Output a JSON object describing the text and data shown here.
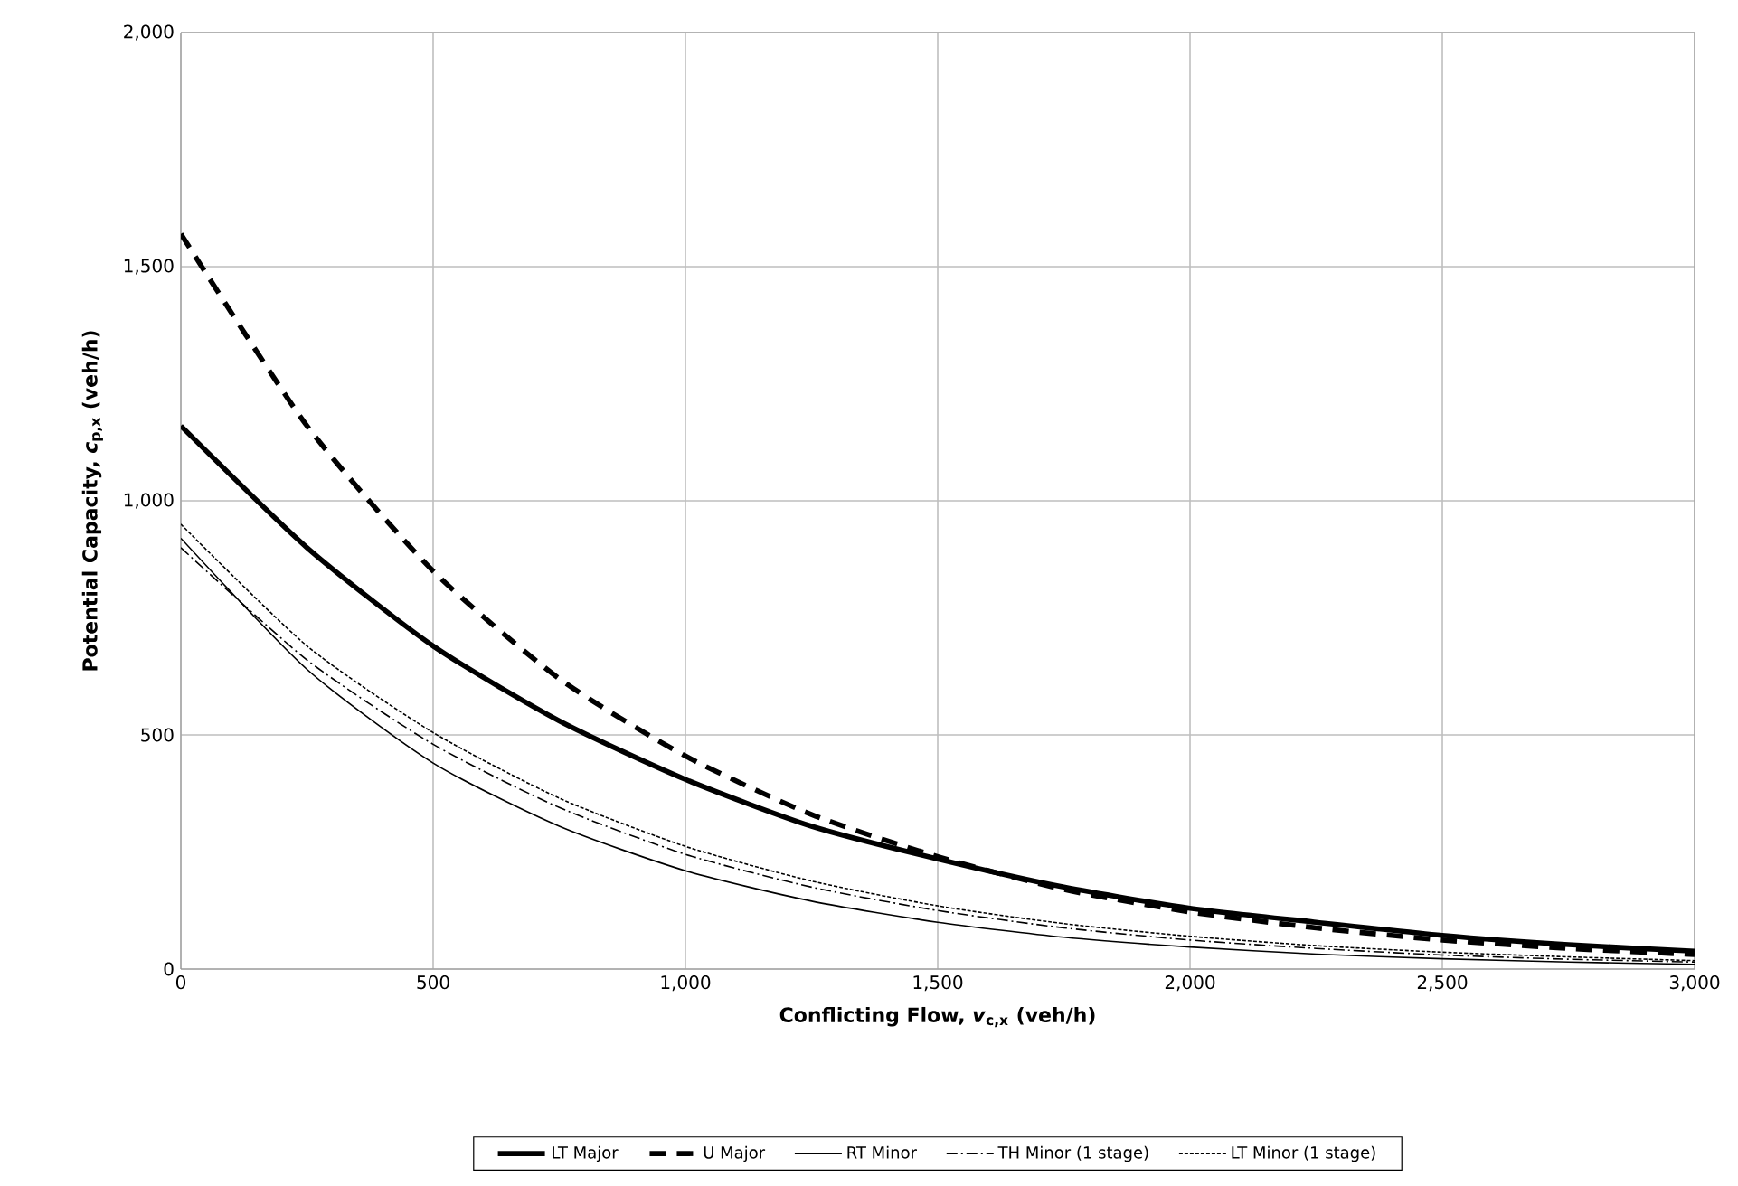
{
  "chart_data": {
    "type": "line",
    "xlabel": "Conflicting Flow, *v*$_{c,x}$ (veh/h)",
    "ylabel": "Potential Capacity, *c*$_{p,x}$ (veh/h)",
    "x": [
      0,
      250,
      500,
      750,
      1000,
      1250,
      1500,
      1750,
      2000,
      2250,
      2500,
      2750,
      3000
    ],
    "series": [
      {
        "name": "LT Major",
        "color": "#000000",
        "line_style": "solid",
        "values": [
          1160,
          900,
          690,
          530,
          405,
          305,
          235,
          175,
          130,
          100,
          72,
          52,
          38
        ]
      },
      {
        "name": "U Major",
        "color": "#000000",
        "line_style": "dashed",
        "values": [
          1570,
          1160,
          850,
          620,
          455,
          330,
          240,
          170,
          122,
          88,
          62,
          44,
          31
        ]
      },
      {
        "name": "RT Minor",
        "color": "#000000",
        "line_style": "solid",
        "values": [
          920,
          640,
          440,
          305,
          210,
          145,
          100,
          68,
          47,
          32,
          22,
          15,
          10
        ]
      },
      {
        "name": "TH Minor (1 stage)",
        "color": "#000000",
        "line_style": "dashdot",
        "values": [
          900,
          660,
          480,
          345,
          245,
          175,
          125,
          88,
          62,
          44,
          30,
          21,
          15
        ]
      },
      {
        "name": "LT Minor (1 stage)",
        "color": "#000000",
        "line_style": "dotted",
        "values": [
          950,
          690,
          505,
          365,
          262,
          188,
          135,
          97,
          70,
          50,
          36,
          26,
          18
        ]
      }
    ],
    "xlim": [
      0,
      3000
    ],
    "ylim": [
      0,
      2000
    ],
    "xticks": [
      0,
      500,
      {
        "value": 1000,
        "label": "1,000"
      },
      {
        "value": 1500,
        "label": "1,500"
      },
      {
        "value": 2000,
        "label": "2,000"
      },
      {
        "value": 2500,
        "label": "2,500"
      },
      {
        "value": 3000,
        "label": "3,000"
      }
    ],
    "yticks": [
      0,
      500,
      {
        "value": 1000,
        "label": "1,000"
      },
      {
        "value": 1500,
        "label": "1,500"
      },
      {
        "value": 2000,
        "label": "2,000"
      }
    ],
    "grid": true,
    "legend": "bottom",
    "marker": "none"
  }
}
